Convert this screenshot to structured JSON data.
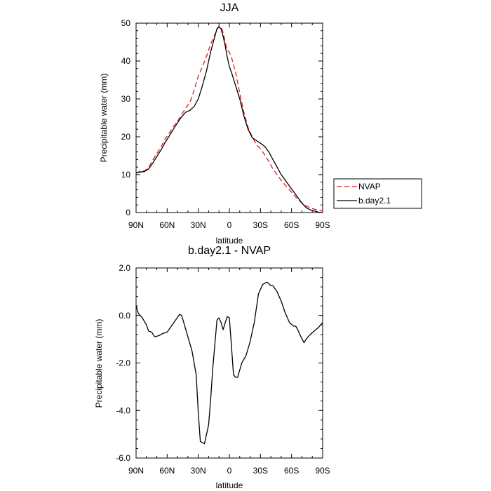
{
  "chart_data": [
    {
      "type": "line",
      "title": "JJA",
      "xlabel": "latitude",
      "ylabel": "Precipitable water (mm)",
      "xlim": [
        -90,
        90
      ],
      "ylim": [
        0,
        50
      ],
      "xticks": [
        -90,
        -60,
        -30,
        0,
        30,
        60,
        90
      ],
      "xtick_labels": [
        "90N",
        "60N",
        "30N",
        "0",
        "30S",
        "60S",
        "90S"
      ],
      "yticks": [
        0,
        10,
        20,
        30,
        40,
        50
      ],
      "ytick_labels": [
        "0",
        "10",
        "20",
        "30",
        "40",
        "50"
      ],
      "legend_position": "right",
      "series": [
        {
          "name": "NVAP",
          "color": "#e41a1c",
          "dash": "dashed",
          "x": [
            -90,
            -86,
            -82,
            -78,
            -74,
            -70,
            -66,
            -62,
            -58,
            -54,
            -50,
            -46,
            -42,
            -38,
            -34,
            -30,
            -26,
            -22,
            -18,
            -14,
            -10,
            -8,
            -6,
            -4,
            -2,
            0,
            2,
            6,
            10,
            14,
            18,
            22,
            26,
            30,
            34,
            38,
            42,
            46,
            50,
            54,
            58,
            62,
            66,
            70,
            74,
            78,
            82,
            86,
            90
          ],
          "y": [
            10.3,
            11.0,
            11.0,
            11.8,
            13.8,
            15.6,
            17.3,
            19.4,
            21.0,
            22.7,
            24.1,
            25.9,
            27.6,
            29.1,
            32.3,
            36.0,
            38.5,
            41.3,
            44.5,
            47.0,
            49.3,
            49.0,
            47.5,
            45.0,
            43.0,
            42.3,
            41.0,
            37.0,
            31.5,
            26.5,
            22.5,
            20.0,
            18.0,
            16.8,
            15.3,
            13.5,
            11.5,
            10.0,
            8.5,
            7.2,
            6.0,
            4.7,
            3.5,
            2.5,
            1.8,
            1.2,
            0.9,
            0.6,
            0.4
          ]
        },
        {
          "name": "b.day2.1",
          "color": "#000000",
          "dash": "solid",
          "x": [
            -90,
            -86,
            -82,
            -78,
            -74,
            -70,
            -66,
            -62,
            -58,
            -54,
            -50,
            -46,
            -42,
            -38,
            -34,
            -30,
            -26,
            -22,
            -18,
            -14,
            -12,
            -10,
            -8,
            -6,
            -4,
            -2,
            0,
            2,
            6,
            10,
            14,
            18,
            22,
            26,
            30,
            34,
            38,
            42,
            46,
            50,
            54,
            58,
            62,
            66,
            70,
            74,
            78,
            82,
            86,
            90
          ],
          "y": [
            10.5,
            10.7,
            10.8,
            11.5,
            13.0,
            14.8,
            16.5,
            18.5,
            20.2,
            22.0,
            23.7,
            25.3,
            26.5,
            27.0,
            28.0,
            30.0,
            33.5,
            37.5,
            42.5,
            46.5,
            48.5,
            49.0,
            48.5,
            46.5,
            44.0,
            41.0,
            38.5,
            37.0,
            33.5,
            30.0,
            25.5,
            22.0,
            19.8,
            19.0,
            18.3,
            17.5,
            16.0,
            14.0,
            12.0,
            10.0,
            8.5,
            7.0,
            5.5,
            4.0,
            2.5,
            1.3,
            0.7,
            0.4,
            0.1,
            0.0
          ]
        }
      ]
    },
    {
      "type": "line",
      "title": "b.day2.1 - NVAP",
      "xlabel": "latitude",
      "ylabel": "Precipitable water (mm)",
      "xlim": [
        -90,
        90
      ],
      "ylim": [
        -6,
        2
      ],
      "xticks": [
        -90,
        -60,
        -30,
        0,
        30,
        60,
        90
      ],
      "xtick_labels": [
        "90N",
        "60N",
        "30N",
        "0",
        "30S",
        "60S",
        "90S"
      ],
      "yticks": [
        -6,
        -4,
        -2,
        0,
        2
      ],
      "ytick_labels": [
        "-6.0",
        "-4.0",
        "-2.0",
        "0.0",
        "2.0"
      ],
      "series": [
        {
          "color": "#000000",
          "dash": "solid",
          "x": [
            -90,
            -88,
            -86,
            -84,
            -80,
            -78,
            -75,
            -72,
            -68,
            -64,
            -60,
            -56,
            -52,
            -48,
            -46,
            -44,
            -40,
            -36,
            -32,
            -30,
            -28,
            -24,
            -20,
            -18,
            -16,
            -12,
            -10,
            -8,
            -6,
            -4,
            -2,
            0,
            2,
            4,
            6,
            8,
            12,
            16,
            20,
            24,
            28,
            32,
            36,
            38,
            40,
            42,
            46,
            50,
            54,
            58,
            62,
            64,
            66,
            68,
            72,
            74,
            76,
            78,
            82,
            86,
            90
          ],
          "y": [
            0.4,
            0.1,
            0.0,
            -0.1,
            -0.4,
            -0.65,
            -0.7,
            -0.9,
            -0.85,
            -0.75,
            -0.7,
            -0.45,
            -0.2,
            0.05,
            0.0,
            -0.3,
            -0.9,
            -1.5,
            -2.5,
            -4.1,
            -5.3,
            -5.4,
            -4.6,
            -3.5,
            -2.2,
            -0.2,
            -0.1,
            -0.3,
            -0.6,
            -0.3,
            -0.05,
            -0.1,
            -1.3,
            -2.5,
            -2.6,
            -2.6,
            -2.0,
            -1.7,
            -1.1,
            -0.3,
            0.9,
            1.3,
            1.4,
            1.35,
            1.25,
            1.25,
            1.0,
            0.6,
            0.1,
            -0.3,
            -0.45,
            -0.45,
            -0.6,
            -0.8,
            -1.15,
            -1.0,
            -0.9,
            -0.8,
            -0.65,
            -0.5,
            -0.3
          ]
        }
      ]
    }
  ]
}
